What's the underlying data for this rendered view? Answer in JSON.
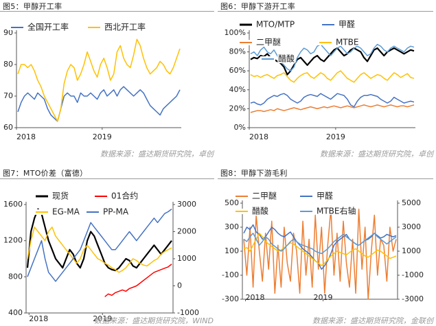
{
  "panels": [
    {
      "title": "图5：甲醇开工率",
      "source": "数据来源：盛达期货研究院，卓创"
    },
    {
      "title": "图6：甲醇下游开工率",
      "source": "数据来源：盛达期货研究院，卓创"
    },
    {
      "title": "图7：MTO价差（富德）",
      "source": "数据来源：盛达期货研究院，WIND"
    },
    {
      "title": "图8：甲醇下游毛利",
      "source": "数据来源：盛达期货研究院，金联创"
    }
  ],
  "chart_data": [
    {
      "type": "line",
      "x_ticks": [
        "2018",
        "2019"
      ],
      "ylim": [
        60,
        90
      ],
      "y_ticks": [
        "60",
        "70",
        "80",
        "90"
      ],
      "grid": false,
      "legend": "top",
      "series": [
        {
          "name": "全国开工率",
          "color": "#4472c4",
          "values": [
            65,
            68,
            70,
            71,
            70,
            69,
            71,
            70,
            69,
            66,
            64,
            63,
            62,
            66,
            70,
            71,
            70,
            70,
            68,
            71,
            70,
            70,
            71,
            70,
            69,
            71,
            72,
            70,
            71,
            72,
            70,
            72,
            73,
            72,
            71,
            70,
            71,
            72,
            71,
            69,
            67,
            66,
            65,
            64,
            66,
            67,
            68,
            69,
            70,
            72
          ]
        },
        {
          "name": "西北开工率",
          "color": "#ffc000",
          "values": [
            77,
            80,
            80,
            79,
            80,
            78,
            75,
            73,
            70,
            68,
            66,
            64,
            62,
            66,
            74,
            78,
            80,
            79,
            75,
            77,
            80,
            84,
            81,
            78,
            76,
            80,
            82,
            79,
            75,
            77,
            84,
            86,
            82,
            80,
            79,
            83,
            88,
            86,
            82,
            79,
            77,
            78,
            79,
            81,
            80,
            78,
            77,
            79,
            82,
            85
          ]
        }
      ]
    },
    {
      "type": "line",
      "x_ticks": [
        "2018",
        "2019"
      ],
      "ylim": [
        0,
        100
      ],
      "y_ticks": [
        "0%",
        "20%",
        "40%",
        "60%",
        "80%",
        "100%"
      ],
      "grid": false,
      "legend": "top",
      "series": [
        {
          "name": "MTO/MTP",
          "color": "#000000",
          "values": [
            72,
            74,
            73,
            76,
            75,
            78,
            74,
            72,
            70,
            68,
            64,
            56,
            60,
            66,
            72,
            74,
            70,
            66,
            70,
            74,
            76,
            72,
            70,
            74,
            78,
            82,
            84,
            80,
            76,
            78,
            82,
            84,
            82,
            80,
            74,
            70,
            76,
            82,
            84,
            80,
            76,
            80,
            82,
            84,
            82,
            80,
            78,
            80,
            82,
            81
          ]
        },
        {
          "name": "甲醛",
          "color": "#4472c4",
          "values": [
            26,
            27,
            25,
            24,
            26,
            30,
            32,
            34,
            33,
            35,
            36,
            34,
            30,
            28,
            26,
            28,
            32,
            34,
            35,
            34,
            33,
            36,
            34,
            32,
            30,
            33,
            36,
            35,
            34,
            30,
            24,
            22,
            28,
            32,
            34,
            34,
            35,
            34,
            33,
            30,
            28,
            26,
            28,
            32,
            30,
            28,
            26,
            27,
            28,
            27
          ]
        },
        {
          "name": "二甲醚",
          "color": "#ed7d31",
          "values": [
            16,
            17,
            18,
            18,
            17,
            18,
            19,
            18,
            20,
            19,
            18,
            19,
            20,
            21,
            20,
            19,
            20,
            21,
            22,
            21,
            20,
            21,
            22,
            21,
            22,
            23,
            22,
            21,
            22,
            23,
            22,
            21,
            22,
            23,
            24,
            23,
            22,
            23,
            24,
            23,
            22,
            23,
            24,
            23,
            22,
            23,
            23,
            22,
            23,
            24
          ]
        },
        {
          "name": "MTBE",
          "color": "#ffc000",
          "values": [
            56,
            54,
            55,
            53,
            55,
            56,
            54,
            52,
            55,
            56,
            58,
            54,
            50,
            48,
            52,
            55,
            57,
            58,
            54,
            52,
            55,
            58,
            56,
            52,
            50,
            54,
            58,
            60,
            56,
            52,
            50,
            48,
            52,
            56,
            58,
            55,
            52,
            54,
            56,
            55,
            52,
            50,
            54,
            58,
            56,
            53,
            55,
            57,
            53,
            52
          ]
        },
        {
          "name": "醋酸",
          "color": "#5b9bd5",
          "values": [
            78,
            80,
            76,
            82,
            85,
            80,
            78,
            82,
            76,
            70,
            66,
            62,
            60,
            64,
            74,
            80,
            84,
            82,
            78,
            80,
            86,
            88,
            84,
            80,
            76,
            80,
            84,
            86,
            82,
            78,
            80,
            84,
            86,
            84,
            80,
            76,
            78,
            84,
            88,
            86,
            82,
            80,
            84,
            86,
            84,
            82,
            80,
            84,
            86,
            85
          ]
        }
      ]
    },
    {
      "type": "line",
      "x_ticks": [
        "2018",
        "2019"
      ],
      "ylim_left": [
        400,
        1600
      ],
      "y_ticks_left": [
        "400",
        "800",
        "1200",
        "1600"
      ],
      "ylim_right": [
        -1000,
        3000
      ],
      "y_ticks_right": [
        "-1000",
        "0",
        "1000",
        "2000",
        "3000"
      ],
      "grid": false,
      "legend": "top",
      "series": [
        {
          "name": "现货",
          "color": "#000000",
          "axis": "left",
          "values": [
            900,
            1300,
            1450,
            1550,
            1500,
            1350,
            1200,
            1100,
            1000,
            950,
            900,
            1000,
            1100,
            1050,
            950,
            900,
            1000,
            1200,
            1300,
            1250,
            1150,
            1050,
            950,
            900,
            880,
            870,
            900,
            950,
            1000,
            980,
            920,
            900,
            950,
            1000,
            1050,
            1100,
            1150,
            1100,
            1050,
            1100,
            1150,
            1200
          ]
        },
        {
          "name": "01合约",
          "color": "#ff0000",
          "axis": "right",
          "values": [
            null,
            null,
            null,
            null,
            null,
            null,
            null,
            null,
            null,
            null,
            null,
            null,
            null,
            null,
            null,
            null,
            null,
            null,
            null,
            null,
            null,
            null,
            -400,
            -300,
            -350,
            -250,
            -200,
            -150,
            -200,
            -100,
            -50,
            0,
            100,
            200,
            300,
            400,
            500,
            550,
            600,
            650,
            700,
            800
          ]
        },
        {
          "name": "EG-MA",
          "color": "#ffc000",
          "axis": "left",
          "values": [
            1000,
            1200,
            1350,
            1300,
            1250,
            1200,
            1300,
            1350,
            1250,
            1200,
            1150,
            1100,
            1050,
            1000,
            950,
            1000,
            1100,
            1150,
            1100,
            1050,
            1000,
            980,
            950,
            930,
            900,
            880,
            850,
            870,
            900,
            950,
            1000,
            980,
            950,
            930,
            920,
            950,
            980,
            1000,
            1050,
            1080,
            1100,
            1120
          ]
        },
        {
          "name": "PP-MA",
          "color": "#4472c4",
          "axis": "left",
          "values": [
            800,
            900,
            1000,
            1100,
            1200,
            1000,
            850,
            800,
            750,
            800,
            850,
            900,
            950,
            1000,
            1050,
            1100,
            1200,
            1300,
            1400,
            1350,
            1300,
            1250,
            1200,
            1150,
            1100,
            1100,
            1150,
            1200,
            1250,
            1300,
            1250,
            1200,
            1250,
            1300,
            1350,
            1400,
            1450,
            1400,
            1450,
            1500,
            1520,
            1550
          ]
        }
      ]
    },
    {
      "type": "line",
      "x_ticks": [
        "2018",
        "2019"
      ],
      "ylim_left": [
        -300,
        500
      ],
      "y_ticks_left": [
        "-300",
        "-100",
        "100",
        "300",
        "500"
      ],
      "ylim_right": [
        -3000,
        5000
      ],
      "y_ticks_right": [
        "-3000",
        "-1000",
        "1000",
        "3000",
        "5000"
      ],
      "grid": false,
      "legend": "top",
      "series": [
        {
          "name": "二甲醚",
          "color": "#ed7d31",
          "axis": "left",
          "values": [
            200,
            -100,
            300,
            -200,
            400,
            100,
            -150,
            250,
            -50,
            350,
            -250,
            150,
            -200,
            300,
            0,
            -150,
            250,
            100,
            -250,
            350,
            -100,
            200,
            -200,
            400,
            -50,
            300,
            -250,
            150,
            450,
            -100,
            250,
            -150,
            350,
            0,
            -200,
            200,
            -250,
            450,
            -50,
            300,
            -300,
            100,
            400,
            -100,
            200,
            150,
            -150,
            300,
            100,
            200
          ]
        },
        {
          "name": "甲醛",
          "color": "#4472c4",
          "axis": "left",
          "values": [
            250,
            300,
            280,
            320,
            260,
            240,
            200,
            220,
            260,
            300,
            280,
            250,
            230,
            220,
            240,
            260,
            220,
            180,
            150,
            120,
            100,
            80,
            50,
            20,
            0,
            -50,
            -20,
            20,
            80,
            150,
            180,
            200,
            220,
            240,
            200,
            180,
            160,
            150,
            170,
            190,
            200,
            220,
            250,
            230,
            210,
            220,
            240,
            230,
            220,
            230
          ]
        },
        {
          "name": "醋酸",
          "color": "#ffc000",
          "axis": "left",
          "values": [
            120,
            130,
            100,
            150,
            200,
            250,
            220,
            180,
            160,
            140,
            120,
            100,
            110,
            130,
            150,
            170,
            160,
            140,
            120,
            100,
            80,
            60,
            40,
            20,
            0,
            -20,
            0,
            30,
            60,
            80,
            100,
            90,
            80,
            70,
            90,
            110,
            120,
            100,
            80,
            60,
            50,
            70,
            90,
            110,
            100,
            80,
            60,
            40,
            50,
            60
          ]
        },
        {
          "name": "MTBE右轴",
          "color": "#5b9bd5",
          "axis": "right",
          "values": [
            2000,
            1800,
            2200,
            2500,
            2000,
            1500,
            1800,
            2200,
            2000,
            1600,
            1400,
            1200,
            1000,
            1200,
            1500,
            1800,
            2000,
            1800,
            1600,
            1500,
            1400,
            1300,
            1200,
            1000,
            900,
            800,
            1000,
            1200,
            1500,
            1800,
            2000,
            2200,
            2400,
            2200,
            2000,
            1800,
            1600,
            1500,
            1700,
            1900,
            2100,
            2300,
            2500,
            2200,
            2000,
            1800,
            1600,
            1800,
            2000,
            2200
          ]
        }
      ]
    }
  ]
}
